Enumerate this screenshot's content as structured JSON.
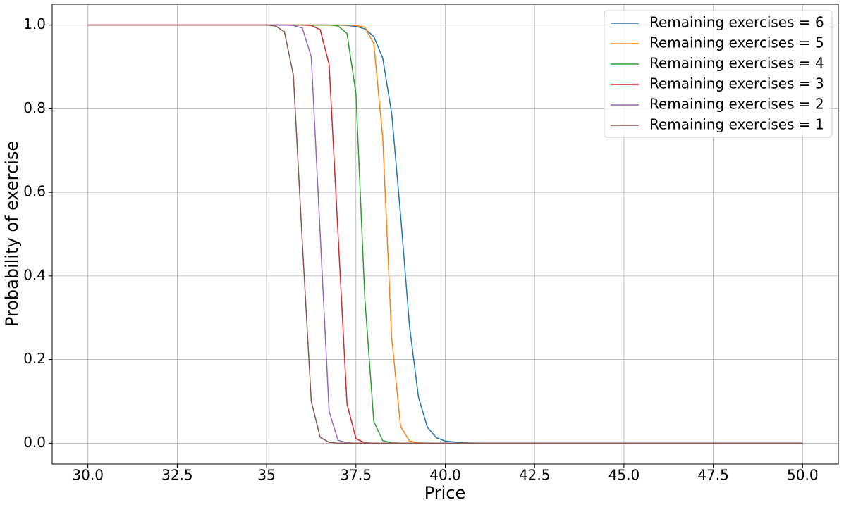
{
  "chart_data": {
    "type": "line",
    "xlabel": "Price",
    "ylabel": "Probability of exercise",
    "x": [
      30,
      31,
      32,
      33,
      34,
      34.5,
      35,
      35.25,
      35.5,
      35.75,
      36,
      36.25,
      36.5,
      36.75,
      37,
      37.25,
      37.5,
      37.75,
      38,
      38.25,
      38.5,
      38.75,
      39,
      39.25,
      39.5,
      39.75,
      40,
      40.5,
      41,
      42,
      44,
      46,
      48,
      50
    ],
    "series": [
      {
        "name": "Remaining exercises = 6",
        "color": "#1f77b4",
        "values": [
          1,
          1,
          1,
          1,
          1,
          1,
          1,
          1,
          1,
          1,
          1,
          1,
          1,
          1,
          1,
          0.999,
          0.997,
          0.991,
          0.973,
          0.921,
          0.789,
          0.545,
          0.279,
          0.11,
          0.038,
          0.013,
          0.005,
          0.001,
          0,
          0,
          0,
          0,
          0,
          0
        ]
      },
      {
        "name": "Remaining exercises = 5",
        "color": "#ff7f0e",
        "values": [
          1,
          1,
          1,
          1,
          1,
          1,
          1,
          1,
          1,
          1,
          1,
          1,
          1,
          1,
          1,
          1,
          0.999,
          0.995,
          0.956,
          0.731,
          0.253,
          0.04,
          0.005,
          0.001,
          0,
          0,
          0,
          0,
          0,
          0,
          0,
          0,
          0,
          0
        ]
      },
      {
        "name": "Remaining exercises = 4",
        "color": "#2ca02c",
        "values": [
          1,
          1,
          1,
          1,
          1,
          1,
          1,
          1,
          1,
          1,
          1,
          1,
          1,
          1,
          0.998,
          0.98,
          0.837,
          0.345,
          0.052,
          0.006,
          0.001,
          0,
          0,
          0,
          0,
          0,
          0,
          0,
          0,
          0,
          0,
          0,
          0,
          0
        ]
      },
      {
        "name": "Remaining exercises = 3",
        "color": "#d62728",
        "values": [
          1,
          1,
          1,
          1,
          1,
          1,
          1,
          1,
          1,
          1,
          1,
          0.999,
          0.989,
          0.906,
          0.5,
          0.094,
          0.011,
          0.001,
          0,
          0,
          0,
          0,
          0,
          0,
          0,
          0,
          0,
          0,
          0,
          0,
          0,
          0,
          0,
          0
        ]
      },
      {
        "name": "Remaining exercises = 2",
        "color": "#9467bd",
        "values": [
          1,
          1,
          1,
          1,
          1,
          1,
          1,
          1,
          1,
          0.999,
          0.993,
          0.924,
          0.5,
          0.076,
          0.007,
          0.001,
          0,
          0,
          0,
          0,
          0,
          0,
          0,
          0,
          0,
          0,
          0,
          0,
          0,
          0,
          0,
          0,
          0,
          0
        ]
      },
      {
        "name": "Remaining exercises = 1",
        "color": "#8c564b",
        "values": [
          1,
          1,
          1,
          1,
          1,
          1,
          1,
          0.998,
          0.984,
          0.88,
          0.48,
          0.1,
          0.014,
          0.002,
          0,
          0,
          0,
          0,
          0,
          0,
          0,
          0,
          0,
          0,
          0,
          0,
          0,
          0,
          0,
          0,
          0,
          0,
          0,
          0
        ]
      }
    ],
    "xlim": [
      29,
      51
    ],
    "ylim": [
      -0.05,
      1.05
    ],
    "xticks": [
      {
        "value": 30,
        "label": "30.0"
      },
      32.5,
      35.0,
      37.5,
      {
        "value": 40,
        "label": "40.0"
      },
      42.5,
      {
        "value": 45,
        "label": "45.0"
      },
      47.5,
      {
        "value": 50,
        "label": "50.0"
      }
    ],
    "yticks": [
      {
        "value": 0,
        "label": "0.0"
      },
      0.2,
      0.4,
      0.6,
      0.8,
      {
        "value": 1,
        "label": "1.0"
      }
    ],
    "grid": true,
    "legend": "upper right"
  }
}
